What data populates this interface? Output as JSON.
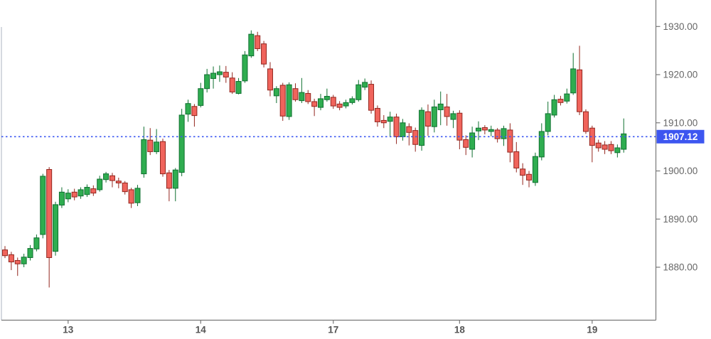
{
  "colors": {
    "background": "#ffffff",
    "up_fill": "#2fad50",
    "up_border": "#0f7030",
    "down_fill": "#f0645c",
    "down_border": "#93261e",
    "axis_line": "#787878",
    "left_border": "#d5d9e0",
    "y_label": "#666666",
    "x_label": "#555555",
    "price_line": "#3b57f2",
    "badge_bg": "#3d56f0",
    "badge_text": "#ffffff"
  },
  "price_line": {
    "value": 1907.12,
    "label": "1907.12"
  },
  "chart_data": {
    "type": "candlestick",
    "title": "",
    "xlabel": "",
    "ylabel": "",
    "grid": false,
    "legend": false,
    "y_axis": {
      "side": "right",
      "tick_labels": [
        "1930.00",
        "1920.00",
        "1910.00",
        "1900.00",
        "1890.00",
        "1880.00"
      ],
      "tick_values": [
        1930,
        1920,
        1910,
        1900,
        1890,
        1880
      ],
      "visible_range": [
        1869,
        1935.5
      ]
    },
    "x_axis": {
      "side": "bottom",
      "tick_labels": [
        "13",
        "14",
        "17",
        "18",
        "19"
      ],
      "tick_candle_index": [
        11,
        32,
        53,
        73,
        94
      ]
    },
    "annotation_line": {
      "value": 1907.12,
      "label": "1907.12",
      "style": "dotted"
    },
    "candles_format": [
      "open",
      "high",
      "low",
      "close"
    ],
    "candles": [
      [
        1883.6,
        1884.4,
        1881.9,
        1882.4
      ],
      [
        1882.6,
        1883.2,
        1879.4,
        1881.1
      ],
      [
        1881.4,
        1882.0,
        1878.2,
        1880.7
      ],
      [
        1880.7,
        1882.8,
        1880.0,
        1882.1
      ],
      [
        1882.0,
        1884.6,
        1881.4,
        1883.9
      ],
      [
        1883.8,
        1886.8,
        1883.3,
        1886.1
      ],
      [
        1886.8,
        1899.4,
        1886.0,
        1898.9
      ],
      [
        1900.3,
        1900.8,
        1875.8,
        1882.0
      ],
      [
        1883.3,
        1893.6,
        1882.4,
        1893.0
      ],
      [
        1892.9,
        1896.6,
        1892.3,
        1895.6
      ],
      [
        1894.2,
        1896.2,
        1893.5,
        1895.4
      ],
      [
        1895.6,
        1896.3,
        1893.9,
        1894.6
      ],
      [
        1894.8,
        1896.6,
        1894.2,
        1896.1
      ],
      [
        1895.1,
        1897.2,
        1894.6,
        1896.6
      ],
      [
        1896.3,
        1897.0,
        1894.8,
        1895.4
      ],
      [
        1896.1,
        1899.0,
        1895.7,
        1898.3
      ],
      [
        1898.2,
        1899.8,
        1897.6,
        1899.4
      ],
      [
        1899.0,
        1899.6,
        1896.6,
        1898.0
      ],
      [
        1897.9,
        1898.6,
        1896.4,
        1897.5
      ],
      [
        1897.5,
        1897.9,
        1895.1,
        1895.7
      ],
      [
        1896.1,
        1896.5,
        1892.3,
        1893.3
      ],
      [
        1893.4,
        1897.1,
        1892.7,
        1896.4
      ],
      [
        1899.4,
        1909.2,
        1898.6,
        1906.5
      ],
      [
        1906.4,
        1908.9,
        1903.3,
        1904.0
      ],
      [
        1904.0,
        1908.7,
        1903.5,
        1906.0
      ],
      [
        1906.1,
        1906.7,
        1898.8,
        1899.4
      ],
      [
        1899.6,
        1900.2,
        1893.7,
        1896.4
      ],
      [
        1896.4,
        1900.6,
        1893.7,
        1900.2
      ],
      [
        1899.7,
        1912.9,
        1898.9,
        1911.6
      ],
      [
        1911.8,
        1914.8,
        1910.2,
        1914.0
      ],
      [
        1913.4,
        1913.9,
        1909.2,
        1911.5
      ],
      [
        1913.6,
        1918.3,
        1913.2,
        1917.1
      ],
      [
        1917.1,
        1921.2,
        1916.3,
        1920.0
      ],
      [
        1919.2,
        1921.7,
        1917.1,
        1920.3
      ],
      [
        1920.0,
        1921.9,
        1918.5,
        1920.6
      ],
      [
        1920.5,
        1921.8,
        1918.3,
        1919.5
      ],
      [
        1919.3,
        1920.5,
        1916.0,
        1916.4
      ],
      [
        1916.1,
        1919.3,
        1915.9,
        1918.6
      ],
      [
        1918.7,
        1924.9,
        1918.3,
        1924.1
      ],
      [
        1923.9,
        1929.2,
        1923.5,
        1928.4
      ],
      [
        1928.1,
        1928.9,
        1924.9,
        1925.4
      ],
      [
        1926.4,
        1927.0,
        1921.5,
        1922.2
      ],
      [
        1921.2,
        1922.6,
        1915.5,
        1916.8
      ],
      [
        1915.6,
        1917.6,
        1914.1,
        1917.1
      ],
      [
        1917.8,
        1918.3,
        1910.4,
        1911.4
      ],
      [
        1911.3,
        1918.4,
        1910.6,
        1917.9
      ],
      [
        1917.1,
        1918.2,
        1914.4,
        1914.8
      ],
      [
        1914.6,
        1919.3,
        1914.1,
        1916.3
      ],
      [
        1916.1,
        1916.8,
        1913.9,
        1914.4
      ],
      [
        1914.4,
        1915.0,
        1911.4,
        1913.4
      ],
      [
        1913.2,
        1916.0,
        1912.6,
        1915.0
      ],
      [
        1914.8,
        1917.1,
        1914.4,
        1915.5
      ],
      [
        1915.3,
        1915.8,
        1912.9,
        1913.5
      ],
      [
        1913.9,
        1914.5,
        1912.6,
        1913.2
      ],
      [
        1913.5,
        1914.8,
        1913.0,
        1914.2
      ],
      [
        1914.2,
        1915.5,
        1913.8,
        1915.0
      ],
      [
        1914.8,
        1918.9,
        1914.4,
        1917.9
      ],
      [
        1917.4,
        1919.2,
        1916.8,
        1918.4
      ],
      [
        1918.0,
        1918.8,
        1911.9,
        1912.6
      ],
      [
        1913.0,
        1913.6,
        1909.2,
        1910.2
      ],
      [
        1910.5,
        1911.6,
        1908.9,
        1910.0
      ],
      [
        1910.3,
        1912.3,
        1907.2,
        1911.2
      ],
      [
        1911.2,
        1911.9,
        1905.6,
        1907.1
      ],
      [
        1907.1,
        1910.8,
        1906.3,
        1910.0
      ],
      [
        1909.2,
        1909.9,
        1905.3,
        1908.0
      ],
      [
        1908.4,
        1909.0,
        1904.0,
        1905.5
      ],
      [
        1905.3,
        1913.2,
        1904.2,
        1912.6
      ],
      [
        1912.3,
        1913.8,
        1907.3,
        1909.3
      ],
      [
        1909.2,
        1914.8,
        1908.0,
        1913.3
      ],
      [
        1912.7,
        1916.5,
        1909.5,
        1913.9
      ],
      [
        1913.3,
        1916.0,
        1909.4,
        1911.3
      ],
      [
        1910.7,
        1912.5,
        1908.9,
        1911.9
      ],
      [
        1912.0,
        1912.6,
        1904.5,
        1906.4
      ],
      [
        1906.5,
        1907.4,
        1903.3,
        1904.9
      ],
      [
        1904.5,
        1909.2,
        1902.8,
        1907.9
      ],
      [
        1908.3,
        1910.3,
        1906.4,
        1908.9
      ],
      [
        1909.0,
        1909.5,
        1907.6,
        1908.5
      ],
      [
        1908.2,
        1909.4,
        1907.2,
        1908.6
      ],
      [
        1908.5,
        1908.9,
        1905.9,
        1906.7
      ],
      [
        1906.7,
        1909.4,
        1905.2,
        1908.8
      ],
      [
        1908.5,
        1909.9,
        1901.8,
        1903.9
      ],
      [
        1904.0,
        1906.0,
        1899.7,
        1900.6
      ],
      [
        1900.4,
        1901.6,
        1897.1,
        1899.1
      ],
      [
        1899.3,
        1900.0,
        1896.6,
        1898.1
      ],
      [
        1897.6,
        1903.8,
        1896.9,
        1903.0
      ],
      [
        1902.9,
        1909.9,
        1902.2,
        1908.2
      ],
      [
        1908.2,
        1914.4,
        1907.4,
        1911.9
      ],
      [
        1911.6,
        1915.8,
        1911.1,
        1914.8
      ],
      [
        1914.9,
        1915.6,
        1913.6,
        1914.2
      ],
      [
        1914.5,
        1917.1,
        1914.0,
        1916.0
      ],
      [
        1916.2,
        1924.5,
        1915.8,
        1921.2
      ],
      [
        1921.0,
        1926.0,
        1911.6,
        1912.3
      ],
      [
        1912.3,
        1912.8,
        1907.7,
        1908.2
      ],
      [
        1908.9,
        1909.4,
        1901.8,
        1905.3
      ],
      [
        1905.8,
        1906.5,
        1904.0,
        1904.8
      ],
      [
        1905.4,
        1906.2,
        1903.5,
        1904.5
      ],
      [
        1905.5,
        1906.2,
        1903.5,
        1904.2
      ],
      [
        1903.8,
        1905.5,
        1902.8,
        1904.8
      ],
      [
        1904.5,
        1910.9,
        1903.8,
        1907.7
      ]
    ]
  }
}
